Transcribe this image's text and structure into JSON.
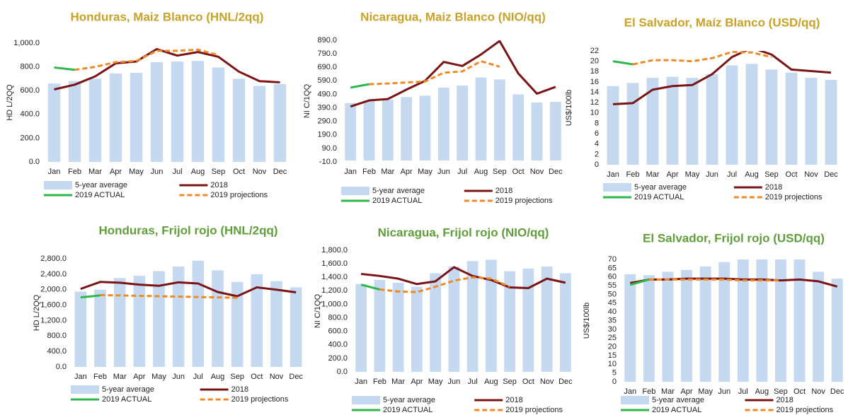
{
  "chart_data": [
    {
      "type": "combo",
      "title": "Honduras, Maiz Blanco (HNL/2qq)",
      "title_color": "#c9a227",
      "y_label": "HD L/2QQ",
      "categories": [
        "Jan",
        "Feb",
        "Mar",
        "Apr",
        "May",
        "Jun",
        "Jul",
        "Aug",
        "Sep",
        "Oct",
        "Nov",
        "Dec"
      ],
      "ylim": [
        0,
        1000
      ],
      "yticks": [
        {
          "value": 0,
          "label": "0.0"
        },
        {
          "value": 200,
          "label": "200.0"
        },
        {
          "value": 400,
          "label": "400.0"
        },
        {
          "value": 600,
          "label": "600.0"
        },
        {
          "value": 800,
          "label": "800.0"
        },
        {
          "value": 1000,
          "label": "1,000.0"
        }
      ],
      "grid": false,
      "series": [
        {
          "name": "5-year average",
          "type": "bar",
          "color": "#c5d9f1",
          "values": [
            660,
            680,
            700,
            745,
            750,
            840,
            845,
            850,
            795,
            700,
            640,
            655
          ]
        },
        {
          "name": "2018",
          "type": "line",
          "color": "#7b1416",
          "values": [
            610,
            650,
            720,
            830,
            845,
            950,
            895,
            925,
            885,
            760,
            680,
            670
          ]
        },
        {
          "name": "2019 ACTUAL",
          "type": "line",
          "color": "#2eb84b",
          "values": [
            795,
            775,
            null,
            null,
            null,
            null,
            null,
            null,
            null,
            null,
            null,
            null
          ]
        },
        {
          "name": "2019 projections",
          "type": "line",
          "dashed": true,
          "color": "#f08a24",
          "values": [
            null,
            775,
            800,
            840,
            850,
            935,
            935,
            945,
            900,
            null,
            null,
            null
          ]
        }
      ]
    },
    {
      "type": "combo",
      "title": "Nicaragua, Maiz Blanco (NIO/qq)",
      "title_color": "#c9a227",
      "y_label": "NI C/1QQ",
      "categories": [
        "Jan",
        "Feb",
        "Mar",
        "Apr",
        "May",
        "Jun",
        "Jul",
        "Aug",
        "Sep",
        "Oct",
        "Nov",
        "Dec"
      ],
      "ylim": [
        -10,
        890
      ],
      "yticks": [
        {
          "value": -10,
          "label": "-10.0"
        },
        {
          "value": 90,
          "label": "90.0"
        },
        {
          "value": 190,
          "label": "190.0"
        },
        {
          "value": 290,
          "label": "290.0"
        },
        {
          "value": 390,
          "label": "390.0"
        },
        {
          "value": 490,
          "label": "490.0"
        },
        {
          "value": 590,
          "label": "590.0"
        },
        {
          "value": 690,
          "label": "690.0"
        },
        {
          "value": 790,
          "label": "790.0"
        },
        {
          "value": 890,
          "label": "890.0"
        }
      ],
      "grid": false,
      "series": [
        {
          "name": "5-year average",
          "type": "bar",
          "color": "#c5d9f1",
          "values": [
            425,
            445,
            450,
            470,
            480,
            540,
            555,
            615,
            600,
            490,
            430,
            435
          ]
        },
        {
          "name": "2018",
          "type": "line",
          "color": "#7b1416",
          "values": [
            400,
            445,
            455,
            525,
            590,
            730,
            700,
            785,
            885,
            645,
            495,
            545
          ]
        },
        {
          "name": "2019 ACTUAL",
          "type": "line",
          "color": "#2eb84b",
          "values": [
            540,
            565,
            null,
            null,
            null,
            null,
            null,
            null,
            null,
            null,
            null,
            null
          ]
        },
        {
          "name": "2019 projections",
          "type": "line",
          "dashed": true,
          "color": "#f08a24",
          "values": [
            null,
            565,
            570,
            578,
            585,
            650,
            660,
            735,
            695,
            null,
            null,
            null
          ]
        }
      ]
    },
    {
      "type": "combo",
      "title": "El Salvador, Maíz Blanco (USD/qq)",
      "title_color": "#c9a227",
      "y_label": "US$/100lb",
      "categories": [
        "Jan",
        "Feb",
        "Mar",
        "Apr",
        "May",
        "Jun",
        "Jul",
        "Aug",
        "Sep",
        "Oct",
        "Nov",
        "Dec"
      ],
      "ylim": [
        0,
        22
      ],
      "yticks": [
        0,
        2,
        4,
        6,
        8,
        10,
        12,
        14,
        16,
        18,
        20,
        22
      ],
      "grid": false,
      "series": [
        {
          "name": "5-year average",
          "type": "bar",
          "color": "#c5d9f1",
          "values": [
            15.2,
            15.8,
            16.8,
            17,
            16.8,
            17.5,
            19.2,
            19.5,
            18.4,
            17.8,
            16.8,
            16.4
          ]
        },
        {
          "name": "2018",
          "type": "line",
          "color": "#7b1416",
          "values": [
            11.7,
            11.9,
            14.5,
            15.2,
            15.4,
            17.5,
            20.8,
            22.6,
            21.3,
            18.4,
            18.1,
            17.8
          ]
        },
        {
          "name": "2019 ACTUAL",
          "type": "line",
          "color": "#2eb84b",
          "values": [
            20,
            19.4,
            null,
            null,
            null,
            null,
            null,
            null,
            null,
            null,
            null,
            null
          ]
        },
        {
          "name": "2019 projections",
          "type": "line",
          "dashed": true,
          "color": "#f08a24",
          "values": [
            null,
            19.4,
            20.2,
            20.2,
            20,
            20.6,
            21.8,
            21.7,
            20.8,
            null,
            null,
            null
          ]
        }
      ]
    },
    {
      "type": "combo",
      "title": "Honduras, Frijol rojo (HNL/2qq)",
      "title_color": "#5f9e3a",
      "y_label": "HD L/2QQ",
      "categories": [
        "Jan",
        "Feb",
        "Mar",
        "Apr",
        "May",
        "Jun",
        "Jul",
        "Aug",
        "Sep",
        "Oct",
        "Nov",
        "Dec"
      ],
      "ylim": [
        0,
        2800
      ],
      "yticks": [
        {
          "value": 0,
          "label": "0.0"
        },
        {
          "value": 400,
          "label": "400.0"
        },
        {
          "value": 800,
          "label": "800.0"
        },
        {
          "value": 1200,
          "label": "1,200.0"
        },
        {
          "value": 1600,
          "label": "1,600.0"
        },
        {
          "value": 2000,
          "label": "2,000.0"
        },
        {
          "value": 2400,
          "label": "2,400.0"
        },
        {
          "value": 2800,
          "label": "2,800.0"
        }
      ],
      "grid": false,
      "series": [
        {
          "name": "5-year average",
          "type": "bar",
          "color": "#c5d9f1",
          "values": [
            1950,
            2000,
            2300,
            2360,
            2480,
            2600,
            2750,
            2500,
            2200,
            2400,
            2220,
            2060
          ]
        },
        {
          "name": "2018",
          "type": "line",
          "color": "#7b1416",
          "values": [
            2020,
            2200,
            2180,
            2130,
            2100,
            2190,
            2160,
            1940,
            1830,
            2060,
            2000,
            1930
          ]
        },
        {
          "name": "2019 ACTUAL",
          "type": "line",
          "color": "#2eb84b",
          "values": [
            1800,
            1850,
            null,
            null,
            null,
            null,
            null,
            null,
            null,
            null,
            null,
            null
          ]
        },
        {
          "name": "2019 projections",
          "type": "line",
          "dashed": true,
          "color": "#f08a24",
          "values": [
            null,
            1860,
            1850,
            1840,
            1830,
            1820,
            1810,
            1800,
            1790,
            null,
            null,
            null
          ]
        }
      ]
    },
    {
      "type": "combo",
      "title": "Nicaragua, Frijol rojo (NIO/qq)",
      "title_color": "#5f9e3a",
      "y_label": "NI C/1QQ",
      "categories": [
        "Jan",
        "Feb",
        "Mar",
        "Apr",
        "May",
        "Jun",
        "Jul",
        "Aug",
        "Sep",
        "Oct",
        "Nov",
        "Dec"
      ],
      "ylim": [
        0,
        1800
      ],
      "yticks": [
        {
          "value": 0,
          "label": "0.0"
        },
        {
          "value": 200,
          "label": "200.0"
        },
        {
          "value": 400,
          "label": "400.0"
        },
        {
          "value": 600,
          "label": "600.0"
        },
        {
          "value": 800,
          "label": "800.0"
        },
        {
          "value": 1000,
          "label": "1,000.0"
        },
        {
          "value": 1200,
          "label": "1,200.0"
        },
        {
          "value": 1400,
          "label": "1,400.0"
        },
        {
          "value": 1600,
          "label": "1,600.0"
        },
        {
          "value": 1800,
          "label": "1,800.0"
        }
      ],
      "grid": false,
      "series": [
        {
          "name": "5-year average",
          "type": "bar",
          "color": "#c5d9f1",
          "values": [
            1300,
            1360,
            1320,
            1260,
            1460,
            1560,
            1640,
            1660,
            1490,
            1530,
            1560,
            1460
          ]
        },
        {
          "name": "2018",
          "type": "line",
          "color": "#7b1416",
          "values": [
            1450,
            1420,
            1380,
            1300,
            1340,
            1550,
            1420,
            1360,
            1250,
            1240,
            1380,
            1320
          ]
        },
        {
          "name": "2019 ACTUAL",
          "type": "line",
          "color": "#2eb84b",
          "values": [
            1290,
            1220,
            null,
            null,
            null,
            null,
            null,
            null,
            null,
            null,
            null,
            null
          ]
        },
        {
          "name": "2019 projections",
          "type": "line",
          "dashed": true,
          "color": "#f08a24",
          "values": [
            null,
            1220,
            1190,
            1180,
            1260,
            1350,
            1400,
            1380,
            1260,
            null,
            null,
            null
          ]
        }
      ]
    },
    {
      "type": "combo",
      "title": "El Salvador, Frijol rojo (USD/qq)",
      "title_color": "#5f9e3a",
      "y_label": "US$/100lb",
      "categories": [
        "Jan",
        "Feb",
        "Mar",
        "Apr",
        "May",
        "Jun",
        "Jul",
        "Aug",
        "Sep",
        "Oct",
        "Nov",
        "Dec"
      ],
      "ylim": [
        0,
        70
      ],
      "yticks": [
        0,
        5,
        10,
        15,
        20,
        25,
        30,
        35,
        40,
        45,
        50,
        55,
        60,
        65,
        70
      ],
      "grid": false,
      "series": [
        {
          "name": "5-year average",
          "type": "bar",
          "color": "#c5d9f1",
          "values": [
            61.5,
            61,
            63,
            64,
            66,
            68.5,
            71,
            72,
            72,
            71,
            63,
            59
          ]
        },
        {
          "name": "2018",
          "type": "line",
          "color": "#7b1416",
          "values": [
            56.5,
            58.5,
            58.5,
            59,
            59,
            59,
            58.5,
            58.5,
            58,
            58.5,
            57.5,
            54.5
          ]
        },
        {
          "name": "2019 ACTUAL",
          "type": "line",
          "color": "#2eb84b",
          "values": [
            55.5,
            58.5,
            null,
            null,
            null,
            null,
            null,
            null,
            null,
            null,
            null,
            null
          ]
        },
        {
          "name": "2019 projections",
          "type": "line",
          "dashed": true,
          "color": "#f08a24",
          "values": [
            null,
            58.5,
            58.5,
            58.5,
            58.5,
            58.5,
            58,
            58,
            58,
            null,
            null,
            null
          ]
        }
      ]
    }
  ]
}
